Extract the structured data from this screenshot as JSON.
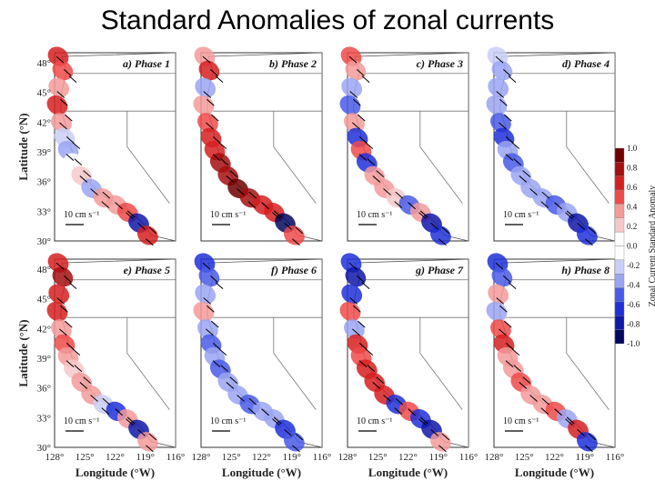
{
  "title": "Standard Anomalies of zonal currents",
  "chart_data": {
    "type": "heatmap",
    "title": "Standard Anomalies of zonal currents",
    "xlabel": "Longitude (°W)",
    "ylabel": "Latitude (°N)",
    "xlim": [
      128,
      116
    ],
    "ylim": [
      30,
      49
    ],
    "x_ticks": [
      "128°",
      "125°",
      "122°",
      "119°",
      "116°"
    ],
    "y_ticks": [
      "30°",
      "33°",
      "36°",
      "39°",
      "42°",
      "45°",
      "48°"
    ],
    "vector_scale_label": "10 cm s⁻¹",
    "colorbar": {
      "label": "Zonal Current Standard Anomaly",
      "ticks": [
        "1.0",
        "0.8",
        "0.6",
        "0.4",
        "0.2",
        "0.0",
        "-0.2",
        "-0.4",
        "-0.6",
        "-0.8",
        "-1.0"
      ],
      "colors": [
        "#6e0000",
        "#a50f0f",
        "#d62020",
        "#ee4a4a",
        "#f39a9a",
        "#f6c9c9",
        "#ffffff",
        "#ffffff",
        "#c9cff6",
        "#9aa4f2",
        "#4a5ae8",
        "#2030d8",
        "#1018a8",
        "#050860"
      ]
    },
    "panels": [
      {
        "label": "a) Phase 1",
        "anomalies": [
          0.6,
          0.5,
          0.3,
          0.6,
          0.3,
          -0.2,
          -0.3,
          0.1,
          0.2,
          -0.3,
          0.3,
          0.4,
          0.5,
          -0.8,
          0.6
        ]
      },
      {
        "label": "b) Phase 2",
        "anomalies": [
          0.4,
          0.6,
          -0.4,
          0.3,
          0.5,
          0.6,
          0.7,
          0.8,
          0.8,
          0.9,
          0.8,
          0.7,
          0.6,
          -0.9,
          0.5
        ]
      },
      {
        "label": "c) Phase 3",
        "anomalies": [
          0.5,
          0.4,
          -0.3,
          -0.5,
          0.4,
          -0.6,
          0.5,
          -0.6,
          0.3,
          0.4,
          0.2,
          -0.5,
          0.3,
          -0.8,
          -0.6
        ]
      },
      {
        "label": "d) Phase 4",
        "anomalies": [
          -0.2,
          -0.3,
          -0.4,
          -0.3,
          -0.5,
          -0.6,
          -0.4,
          -0.5,
          -0.3,
          -0.4,
          -0.3,
          -0.5,
          -0.4,
          -0.8,
          -0.6
        ]
      },
      {
        "label": "e) Phase 5",
        "anomalies": [
          0.7,
          0.8,
          0.6,
          0.7,
          0.4,
          0.5,
          0.3,
          0.2,
          0.4,
          0.3,
          -0.2,
          -0.6,
          0.3,
          -0.8,
          0.4
        ]
      },
      {
        "label": "f) Phase 6",
        "anomalies": [
          -0.6,
          -0.5,
          -0.4,
          0.4,
          -0.3,
          -0.5,
          -0.4,
          -0.5,
          -0.3,
          -0.4,
          -0.5,
          -0.4,
          -0.3,
          -0.6,
          -0.5
        ]
      },
      {
        "label": "g) Phase 7",
        "anomalies": [
          -0.7,
          -0.8,
          -0.6,
          0.5,
          -0.3,
          0.6,
          0.5,
          0.6,
          0.7,
          0.6,
          -0.7,
          0.5,
          -0.6,
          -0.8,
          0.3
        ]
      },
      {
        "label": "h) Phase 8",
        "anomalies": [
          -0.6,
          -0.5,
          0.4,
          -0.3,
          0.5,
          0.6,
          0.4,
          0.3,
          0.5,
          0.4,
          0.4,
          0.5,
          -0.3,
          0.6,
          -0.6
        ]
      }
    ]
  }
}
